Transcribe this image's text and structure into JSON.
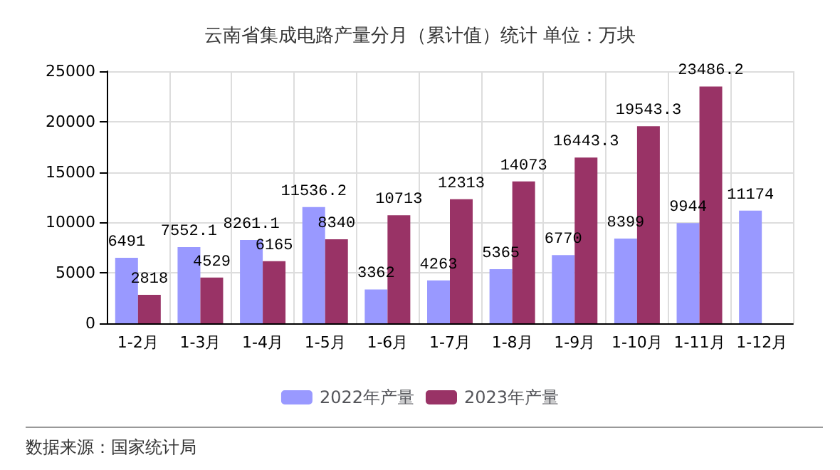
{
  "chart_data": {
    "type": "bar",
    "title": "云南省集成电路产量分月（累计值）统计 单位：万块",
    "categories": [
      "1-2月",
      "1-3月",
      "1-4月",
      "1-5月",
      "1-6月",
      "1-7月",
      "1-8月",
      "1-9月",
      "1-10月",
      "1-11月",
      "1-12月"
    ],
    "series": [
      {
        "name": "2022年产量",
        "color": "#9999ff",
        "values": [
          6491,
          7552.1,
          8261.1,
          11536.2,
          3362,
          4263,
          5365,
          6770,
          8399,
          9944,
          11174
        ]
      },
      {
        "name": "2023年产量",
        "color": "#993366",
        "values": [
          2818,
          4529,
          6165,
          8340,
          10713,
          12313,
          14073,
          16443.3,
          19543.3,
          23486.2,
          null
        ]
      }
    ],
    "ylim": [
      0,
      25000
    ],
    "yticks": [
      0,
      5000,
      10000,
      15000,
      20000,
      25000
    ],
    "grid": true,
    "legend": "bottom",
    "data_labels": true,
    "annotations": [
      "数据来源：国家统计局"
    ]
  }
}
